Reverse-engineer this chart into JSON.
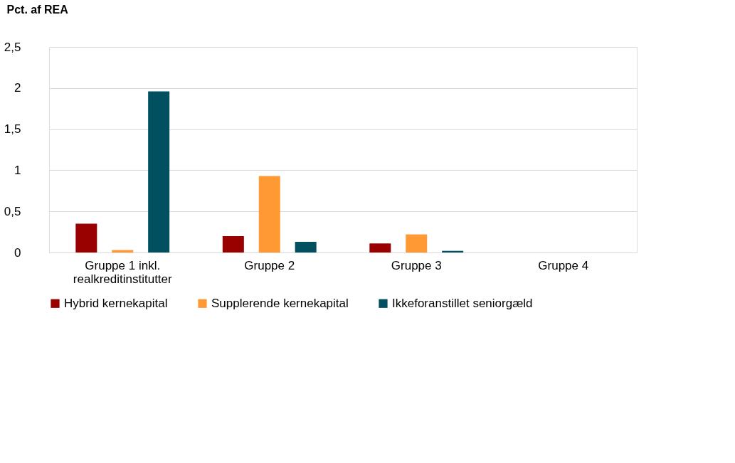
{
  "chart_data": {
    "type": "bar",
    "ylabel": "Pct. af REA",
    "categories": [
      "Gruppe 1 inkl. realkreditinstitutter",
      "Gruppe 2",
      "Gruppe 3",
      "Gruppe 4"
    ],
    "series": [
      {
        "name": "Hybrid kernekapital",
        "color": "#990000",
        "values": [
          0.35,
          0.2,
          0.11,
          0
        ]
      },
      {
        "name": "Supplerende kernekapital",
        "color": "#ff9933",
        "values": [
          0.03,
          0.93,
          0.22,
          0
        ]
      },
      {
        "name": "Ikkeforanstillet seniorgæld",
        "color": "#005060",
        "values": [
          1.96,
          0.13,
          0.02,
          0
        ]
      }
    ],
    "ylim": [
      0,
      2.5
    ],
    "yticks": [
      0,
      {
        "value": 0.5,
        "label": "0,5"
      },
      1,
      {
        "value": 1.5,
        "label": "1,5"
      },
      2,
      {
        "value": 2.5,
        "label": "2,5"
      }
    ],
    "grid": "y",
    "legend": "bottom"
  }
}
